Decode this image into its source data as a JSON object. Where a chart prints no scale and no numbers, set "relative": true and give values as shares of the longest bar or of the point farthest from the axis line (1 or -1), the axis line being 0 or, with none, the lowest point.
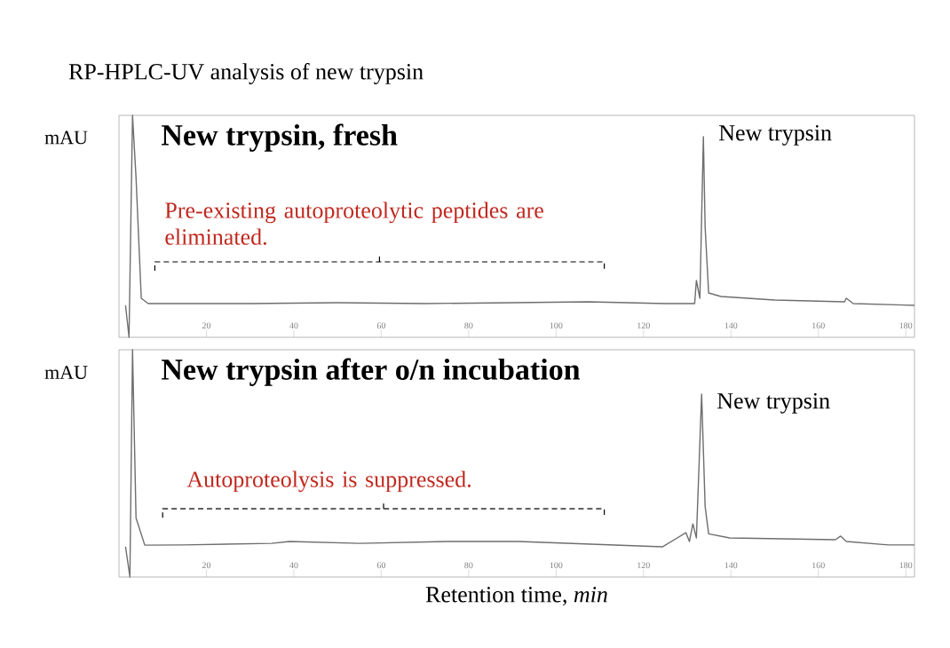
{
  "chart_data": [
    {
      "type": "line",
      "title": "RP-HPLC-UV analysis of new trypsin",
      "subtitle": "New trypsin, fresh",
      "ylabel": "mAU",
      "relative": true,
      "color": "#6e6e6e",
      "x": [
        1.5,
        2.3,
        3.1,
        3.9,
        5.1,
        6.7,
        30,
        50,
        70,
        90,
        107.5,
        125,
        131.7,
        132.1,
        132.9,
        133.7,
        134.1,
        134.9,
        137.7,
        150,
        166,
        166.4,
        168,
        182
      ],
      "values": [
        0.144,
        0,
        1,
        0.72,
        0.176,
        0.152,
        0.152,
        0.156,
        0.152,
        0.156,
        0.16,
        0.152,
        0.152,
        0.256,
        0.176,
        0.904,
        0.496,
        0.2,
        0.184,
        0.168,
        0.16,
        0.176,
        0.152,
        0.144
      ],
      "xlim": [
        0,
        182
      ],
      "xticks": [
        20,
        40,
        60,
        80,
        100,
        120,
        140,
        160,
        180
      ],
      "annotations": [
        {
          "text": "New trypsin",
          "x": 133.7,
          "y": 0.904
        },
        "Pre-existing autoproteolytic peptides are eliminated."
      ]
    },
    {
      "type": "line",
      "title": "New trypsin after o/n incubation",
      "xlabel": "Retention time, *min*",
      "ylabel": "mAU",
      "relative": true,
      "color": "#6e6e6e",
      "x": [
        1.5,
        2.5,
        3.1,
        3.9,
        5.9,
        14.8,
        34.9,
        39,
        55.1,
        75.2,
        91.4,
        124.4,
        129.7,
        130.5,
        131.3,
        132.1,
        133.3,
        134.1,
        134.9,
        139.7,
        163.9,
        165.1,
        166.4,
        176,
        182
      ],
      "values": [
        0.133,
        0,
        1,
        0.26,
        0.14,
        0.141,
        0.148,
        0.156,
        0.148,
        0.156,
        0.156,
        0.133,
        0.195,
        0.156,
        0.234,
        0.172,
        0.805,
        0.31,
        0.19,
        0.172,
        0.164,
        0.18,
        0.156,
        0.141,
        0.141
      ],
      "xlim": [
        0,
        182
      ],
      "xticks": [
        20,
        40,
        60,
        80,
        100,
        120,
        140,
        160,
        180
      ],
      "annotations": [
        {
          "text": "New trypsin",
          "x": 133.3,
          "y": 0.805
        },
        "Autoproteolysis is suppressed."
      ]
    }
  ]
}
